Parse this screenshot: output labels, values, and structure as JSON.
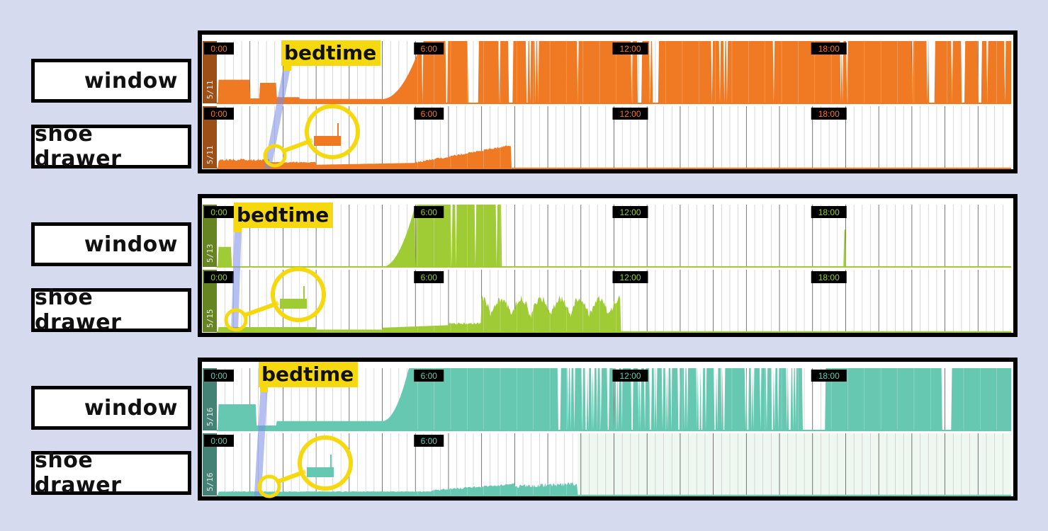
{
  "labels": {
    "window": "window",
    "shoe_drawer": "shoe drawer",
    "bedtime": "bedtime"
  },
  "chart_data": [
    {
      "type": "area",
      "color": "#f07a23",
      "strips": [
        {
          "name": "window",
          "date": "5/11",
          "hour_ticks": [
            "0:00",
            "6:00",
            "12:00",
            "18:00"
          ]
        },
        {
          "name": "shoe drawer",
          "date": "5/11",
          "hour_ticks": [
            "0:00",
            "6:00",
            "12:00",
            "18:00"
          ]
        }
      ],
      "bedtime_hour": 1.6
    },
    {
      "type": "area",
      "color": "#9fcb35",
      "strips": [
        {
          "name": "window",
          "date": "5/13",
          "hour_ticks": [
            "0:00",
            "6:00",
            "12:00",
            "18:00"
          ]
        },
        {
          "name": "shoe drawer",
          "date": "5/15",
          "hour_ticks": [
            "0:00",
            "6:00",
            "12:00",
            "18:00"
          ]
        }
      ],
      "bedtime_hour": 0.6
    },
    {
      "type": "area",
      "color": "#67c8b2",
      "strips": [
        {
          "name": "window",
          "date": "5/16",
          "hour_ticks": [
            "0:00",
            "6:00",
            "12:00",
            "18:00"
          ]
        },
        {
          "name": "shoe drawer",
          "date": "5/16",
          "hour_ticks": [
            "0:00",
            "6:00"
          ]
        }
      ],
      "bedtime_hour": 1.3
    }
  ]
}
